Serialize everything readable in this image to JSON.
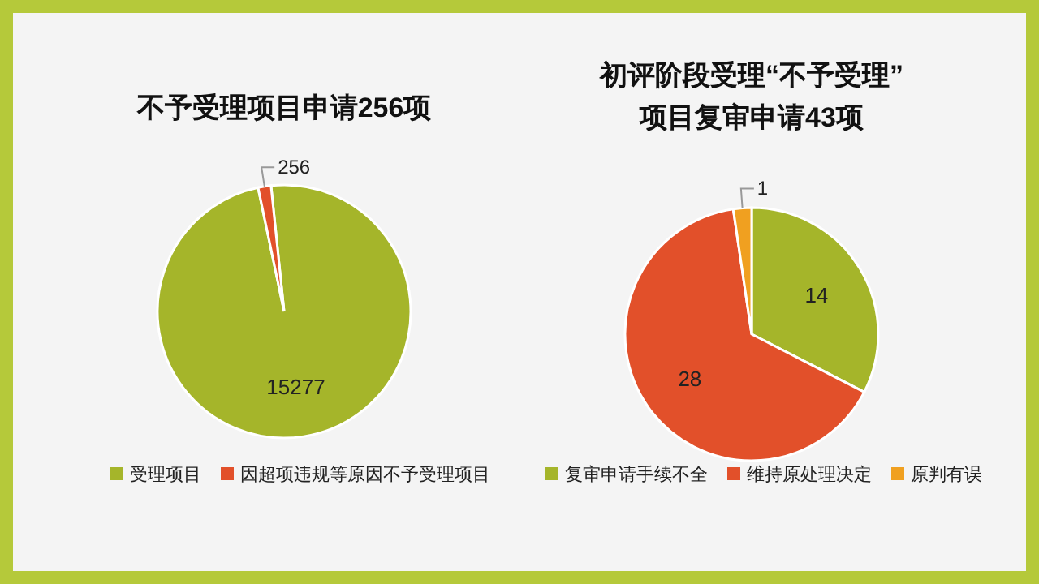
{
  "chart_data": [
    {
      "type": "pie",
      "title": "不予受理项目申请256项",
      "categories": [
        "受理项目",
        "因超项违规等原因不予受理项目"
      ],
      "values": [
        15277,
        256
      ],
      "colors": [
        "#a5b52a",
        "#e2502a"
      ],
      "data_labels": true,
      "legend": "bottom"
    },
    {
      "type": "pie",
      "title": "初评阶段受理“不予受理”\n项目复审申请43项",
      "categories": [
        "复审申请手续不全",
        "维持原处理决定",
        "原判有误"
      ],
      "values": [
        14,
        28,
        1
      ],
      "colors": [
        "#a5b52a",
        "#e2502a",
        "#f0a020"
      ],
      "data_labels": true,
      "legend": "bottom"
    }
  ]
}
